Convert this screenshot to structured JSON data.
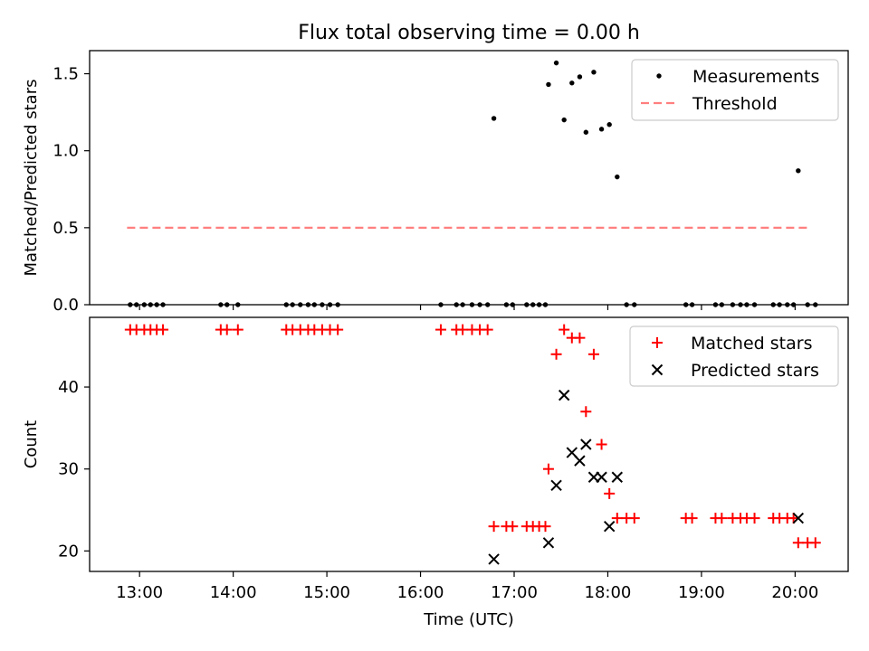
{
  "chart_data": [
    {
      "type": "scatter",
      "title": "Flux total observing time = 0.00 h",
      "xlabel": "",
      "ylabel": "Matched/Predicted stars",
      "xlim": [
        "12:28",
        "20:34"
      ],
      "ylim": [
        0,
        1.65
      ],
      "yticks": [
        0.0,
        0.5,
        1.0,
        1.5
      ],
      "ytick_labels": [
        "0.0",
        "0.5",
        "1.0",
        "1.5"
      ],
      "xticks": [
        "13:00",
        "14:00",
        "15:00",
        "16:00",
        "17:00",
        "18:00",
        "19:00",
        "20:00"
      ],
      "grid": false,
      "legend": "top-right",
      "series": [
        {
          "name": "Measurements",
          "color": "#000000",
          "marker": "dot",
          "points": [
            [
              "12:54",
              0
            ],
            [
              "12:58",
              0
            ],
            [
              "13:03",
              0
            ],
            [
              "13:07",
              0
            ],
            [
              "13:11",
              0
            ],
            [
              "13:15",
              0
            ],
            [
              "13:52",
              0
            ],
            [
              "13:56",
              0
            ],
            [
              "14:03",
              0
            ],
            [
              "14:34",
              0
            ],
            [
              "14:38",
              0
            ],
            [
              "14:43",
              0
            ],
            [
              "14:48",
              0
            ],
            [
              "14:52",
              0
            ],
            [
              "14:57",
              0
            ],
            [
              "15:02",
              0
            ],
            [
              "15:07",
              0
            ],
            [
              "16:13",
              0
            ],
            [
              "16:23",
              0
            ],
            [
              "16:27",
              0
            ],
            [
              "16:33",
              0
            ],
            [
              "16:38",
              0
            ],
            [
              "16:43",
              0
            ],
            [
              "16:47",
              1.21
            ],
            [
              "16:55",
              0
            ],
            [
              "16:59",
              0
            ],
            [
              "17:08",
              0
            ],
            [
              "17:12",
              0
            ],
            [
              "17:16",
              0
            ],
            [
              "17:20",
              0
            ],
            [
              "17:22",
              1.43
            ],
            [
              "17:27",
              1.57
            ],
            [
              "17:32",
              1.2
            ],
            [
              "17:37",
              1.44
            ],
            [
              "17:42",
              1.48
            ],
            [
              "17:46",
              1.12
            ],
            [
              "17:51",
              1.51
            ],
            [
              "17:56",
              1.14
            ],
            [
              "18:01",
              1.17
            ],
            [
              "18:06",
              0.83
            ],
            [
              "18:12",
              0
            ],
            [
              "18:17",
              0
            ],
            [
              "18:50",
              0
            ],
            [
              "18:54",
              0
            ],
            [
              "19:09",
              0
            ],
            [
              "19:13",
              0
            ],
            [
              "19:20",
              0
            ],
            [
              "19:25",
              0
            ],
            [
              "19:29",
              0
            ],
            [
              "19:34",
              0
            ],
            [
              "19:46",
              0
            ],
            [
              "19:50",
              0
            ],
            [
              "19:55",
              0
            ],
            [
              "19:59",
              0
            ],
            [
              "20:02",
              0.87
            ],
            [
              "20:08",
              0
            ],
            [
              "20:13",
              0
            ]
          ]
        },
        {
          "name": "Threshold",
          "color": "#ff7f7f",
          "style": "dashed",
          "points": [
            [
              "12:52",
              0.5
            ],
            [
              "20:10",
              0.5
            ]
          ]
        }
      ]
    },
    {
      "type": "scatter",
      "title": "",
      "xlabel": "Time (UTC)",
      "ylabel": "Count",
      "xlim": [
        "12:28",
        "20:34"
      ],
      "ylim": [
        17.5,
        48.5
      ],
      "yticks": [
        20,
        30,
        40
      ],
      "ytick_labels": [
        "20",
        "30",
        "40"
      ],
      "xticks": [
        "13:00",
        "14:00",
        "15:00",
        "16:00",
        "17:00",
        "18:00",
        "19:00",
        "20:00"
      ],
      "grid": false,
      "legend": "top-right",
      "series": [
        {
          "name": "Matched stars",
          "color": "#ff0000",
          "marker": "plus",
          "points": [
            [
              "12:54",
              47
            ],
            [
              "12:58",
              47
            ],
            [
              "13:03",
              47
            ],
            [
              "13:07",
              47
            ],
            [
              "13:11",
              47
            ],
            [
              "13:15",
              47
            ],
            [
              "13:52",
              47
            ],
            [
              "13:56",
              47
            ],
            [
              "14:03",
              47
            ],
            [
              "14:34",
              47
            ],
            [
              "14:38",
              47
            ],
            [
              "14:43",
              47
            ],
            [
              "14:48",
              47
            ],
            [
              "14:52",
              47
            ],
            [
              "14:57",
              47
            ],
            [
              "15:02",
              47
            ],
            [
              "15:07",
              47
            ],
            [
              "16:13",
              47
            ],
            [
              "16:23",
              47
            ],
            [
              "16:27",
              47
            ],
            [
              "16:33",
              47
            ],
            [
              "16:38",
              47
            ],
            [
              "16:43",
              47
            ],
            [
              "16:47",
              23
            ],
            [
              "16:55",
              23
            ],
            [
              "16:59",
              23
            ],
            [
              "17:08",
              23
            ],
            [
              "17:12",
              23
            ],
            [
              "17:16",
              23
            ],
            [
              "17:20",
              23
            ],
            [
              "17:22",
              30
            ],
            [
              "17:27",
              44
            ],
            [
              "17:32",
              47
            ],
            [
              "17:37",
              46
            ],
            [
              "17:42",
              46
            ],
            [
              "17:46",
              37
            ],
            [
              "17:51",
              44
            ],
            [
              "17:56",
              33
            ],
            [
              "18:01",
              27
            ],
            [
              "18:06",
              24
            ],
            [
              "18:12",
              24
            ],
            [
              "18:17",
              24
            ],
            [
              "18:50",
              24
            ],
            [
              "18:54",
              24
            ],
            [
              "19:09",
              24
            ],
            [
              "19:13",
              24
            ],
            [
              "19:20",
              24
            ],
            [
              "19:25",
              24
            ],
            [
              "19:29",
              24
            ],
            [
              "19:34",
              24
            ],
            [
              "19:46",
              24
            ],
            [
              "19:50",
              24
            ],
            [
              "19:55",
              24
            ],
            [
              "19:59",
              24
            ],
            [
              "20:02",
              21
            ],
            [
              "20:08",
              21
            ],
            [
              "20:13",
              21
            ]
          ]
        },
        {
          "name": "Predicted stars",
          "color": "#000000",
          "marker": "x",
          "points": [
            [
              "16:47",
              19
            ],
            [
              "17:22",
              21
            ],
            [
              "17:27",
              28
            ],
            [
              "17:32",
              39
            ],
            [
              "17:37",
              32
            ],
            [
              "17:42",
              31
            ],
            [
              "17:46",
              33
            ],
            [
              "17:51",
              29
            ],
            [
              "17:56",
              29
            ],
            [
              "18:01",
              23
            ],
            [
              "18:06",
              29
            ],
            [
              "20:02",
              24
            ]
          ]
        }
      ]
    }
  ]
}
